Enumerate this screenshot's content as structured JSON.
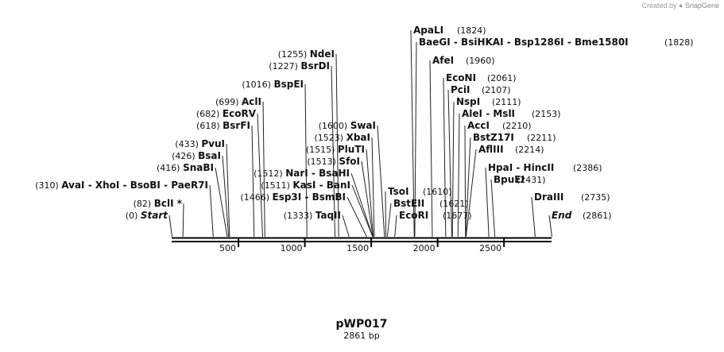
{
  "credit": {
    "prefix": "Created by",
    "brand": "SnapGene"
  },
  "plasmid": {
    "name": "pWP017",
    "length_label": "2861 bp"
  },
  "backbone_color": "#000000",
  "axis_ticks": [
    "500",
    "1000",
    "1500",
    "2000",
    "2500"
  ],
  "left_labels": [
    {
      "pos": "(0)",
      "names": [
        "Start"
      ],
      "italic": true
    },
    {
      "pos": "(82)",
      "names": [
        "BclI *"
      ]
    },
    {
      "pos": "(310)",
      "names": [
        "AvaI",
        "XhoI",
        "BsoBI",
        "PaeR7I"
      ]
    },
    {
      "pos": "(416)",
      "names": [
        "SnaBI"
      ]
    },
    {
      "pos": "(426)",
      "names": [
        "BsaI"
      ]
    },
    {
      "pos": "(433)",
      "names": [
        "PvuI"
      ]
    },
    {
      "pos": "(618)",
      "names": [
        "BsrFI"
      ]
    },
    {
      "pos": "(682)",
      "names": [
        "EcoRV"
      ]
    },
    {
      "pos": "(699)",
      "names": [
        "AclI"
      ]
    },
    {
      "pos": "(1016)",
      "names": [
        "BspEI"
      ]
    },
    {
      "pos": "(1227)",
      "names": [
        "BsrDI"
      ]
    },
    {
      "pos": "(1255)",
      "names": [
        "NdeI"
      ]
    },
    {
      "pos": "(1333)",
      "names": [
        "TaqII"
      ]
    },
    {
      "pos": "(1466)",
      "names": [
        "Esp3I",
        "BsmBI"
      ]
    },
    {
      "pos": "(1511)",
      "names": [
        "KasI",
        "BanI"
      ]
    },
    {
      "pos": "(1512)",
      "names": [
        "NarI",
        "BsaHI"
      ]
    },
    {
      "pos": "(1513)",
      "names": [
        "SfoI"
      ]
    },
    {
      "pos": "(1515)",
      "names": [
        "PluTI"
      ]
    },
    {
      "pos": "(1523)",
      "names": [
        "XbaI"
      ]
    },
    {
      "pos": "(1600)",
      "names": [
        "SwaI"
      ]
    }
  ],
  "right_labels": [
    {
      "names": [
        "TsoI"
      ],
      "pos": "(1610)"
    },
    {
      "names": [
        "BstEII"
      ],
      "pos": "(1621)"
    },
    {
      "names": [
        "EcoRI"
      ],
      "pos": "(1677)"
    },
    {
      "names": [
        "ApaLI"
      ],
      "pos": "(1824)"
    },
    {
      "names": [
        "BaeGI",
        "BsiHKAI",
        "Bsp1286I",
        "Bme1580I"
      ],
      "pos": "(1828)"
    },
    {
      "names": [
        "AfeI"
      ],
      "pos": "(1960)"
    },
    {
      "names": [
        "EcoNI"
      ],
      "pos": "(2061)"
    },
    {
      "names": [
        "PciI"
      ],
      "pos": "(2107)"
    },
    {
      "names": [
        "NspI"
      ],
      "pos": "(2111)"
    },
    {
      "names": [
        "AleI",
        "MslI"
      ],
      "pos": "(2153)"
    },
    {
      "names": [
        "AccI"
      ],
      "pos": "(2210)"
    },
    {
      "names": [
        "BstZ17I"
      ],
      "pos": "(2211)"
    },
    {
      "names": [
        "AflIII"
      ],
      "pos": "(2214)"
    },
    {
      "names": [
        "HpaI",
        "HincII"
      ],
      "pos": "(2386)"
    },
    {
      "names": [
        "BpuEI"
      ],
      "pos": "(2431)"
    },
    {
      "names": [
        "DraIII"
      ],
      "pos": "(2735)"
    },
    {
      "names": [
        "End"
      ],
      "pos": "(2861)",
      "italic": true
    }
  ]
}
